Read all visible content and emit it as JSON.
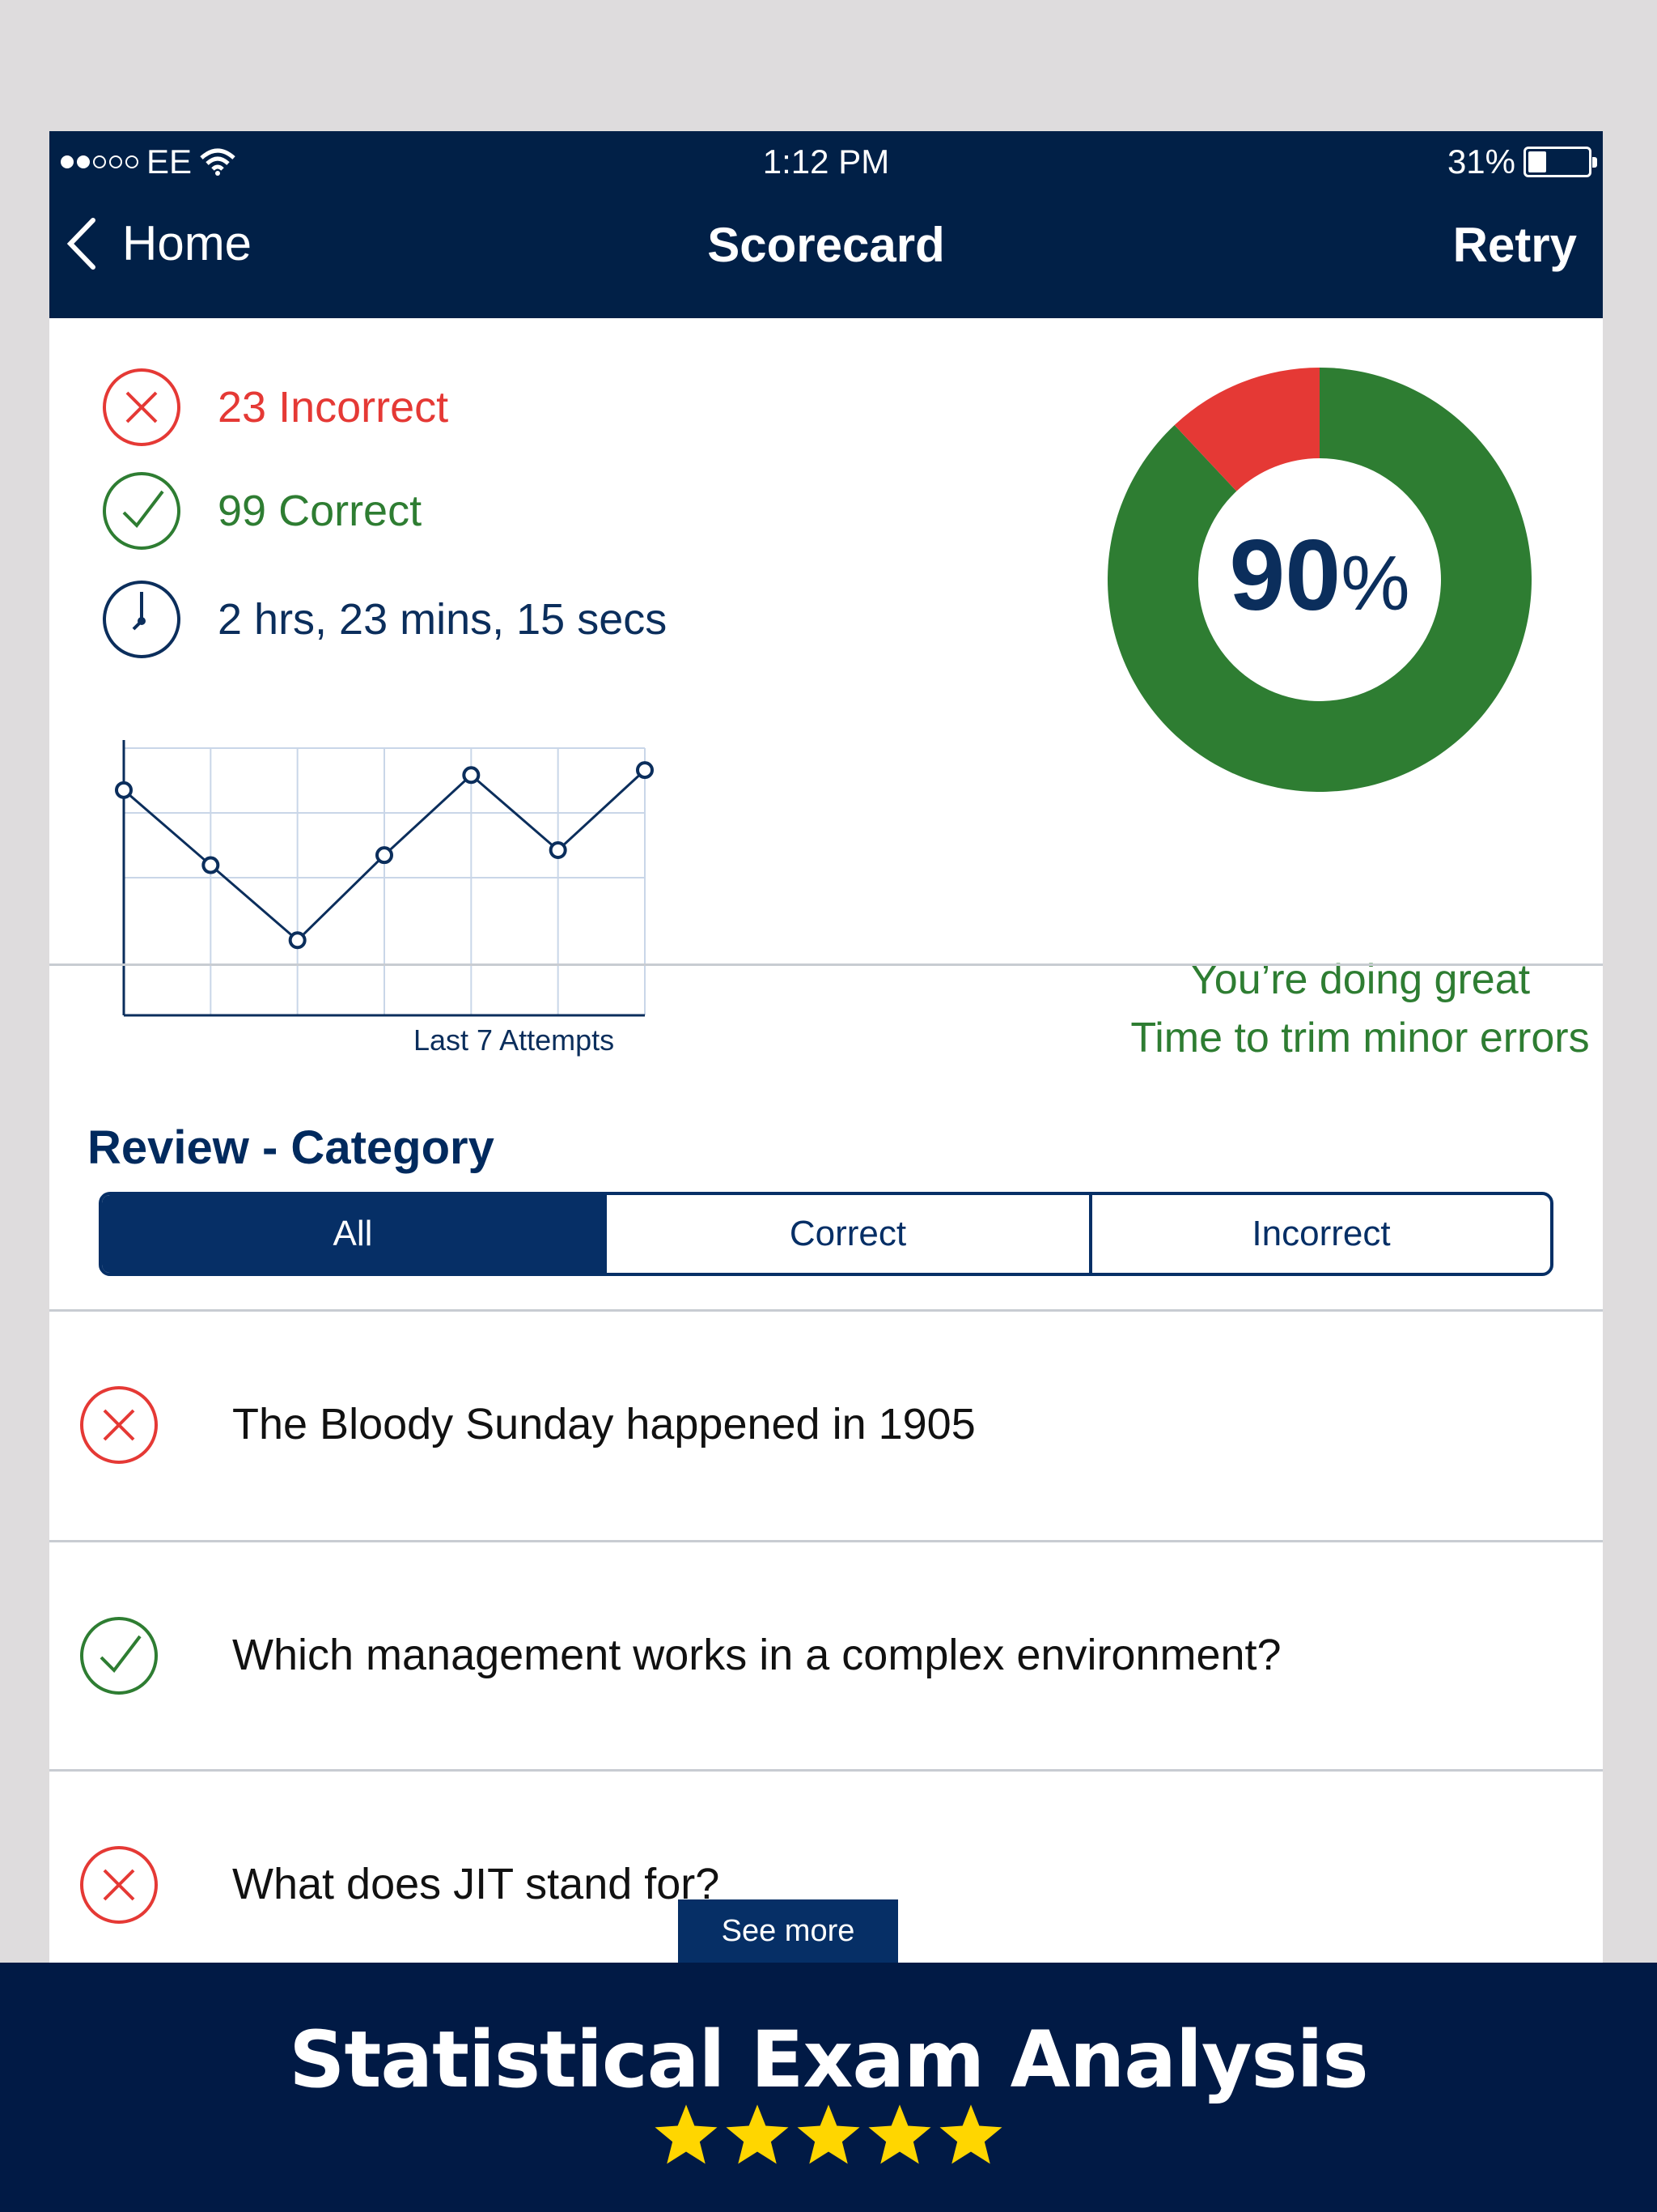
{
  "status_bar": {
    "carrier": "EE",
    "time": "1:12 PM",
    "battery": "31%",
    "battery_level": 0.31,
    "signal_bars": 2
  },
  "nav": {
    "back_label": "Home",
    "title": "Scorecard",
    "retry_label": "Retry"
  },
  "stats": {
    "incorrect_label": "23 Incorrect",
    "correct_label": "99 Correct",
    "time_label": "2 hrs, 23 mins, 15 secs"
  },
  "chart_data": {
    "type": "line",
    "title": "",
    "xlabel": "Last 7 Attempts",
    "x": [
      1,
      2,
      3,
      4,
      5,
      6,
      7
    ],
    "values": [
      85,
      70,
      55,
      72,
      88,
      73,
      89
    ],
    "ylim": [
      40,
      95
    ]
  },
  "score": {
    "percent_value": "90",
    "percent_sign": "%",
    "percent": 90,
    "incorrect_fraction": 0.12
  },
  "message": {
    "line1": "You’re doing great",
    "line2": "Time to trim minor errors"
  },
  "review": {
    "title": "Review - Category",
    "tabs": [
      "All",
      "Correct",
      "Incorrect"
    ],
    "active_tab": "All",
    "questions": [
      {
        "status": "incorrect",
        "text": "The Bloody Sunday happened in 1905"
      },
      {
        "status": "correct",
        "text": "Which management works in a complex environment?"
      },
      {
        "status": "incorrect",
        "text": "What does JIT stand for?"
      }
    ],
    "see_more_label": "See more"
  },
  "banner": {
    "title": "Statistical Exam Analysis",
    "stars": 5
  },
  "colors": {
    "navy": "#012047",
    "green": "#2e7d32",
    "red": "#e53935",
    "star": "#ffd600"
  }
}
